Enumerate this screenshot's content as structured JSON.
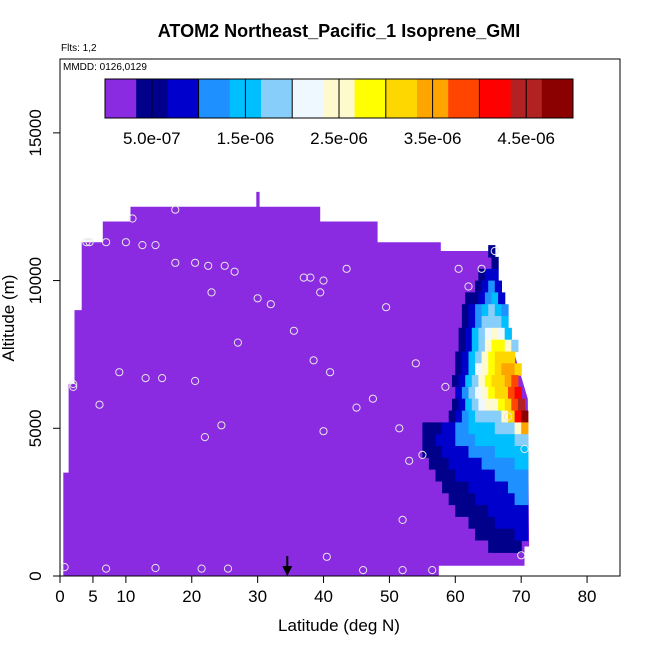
{
  "chart_data": {
    "type": "heatmap",
    "title": "ATOM2 Northeast_Pacific_1 Isoprene_GMI",
    "flights_note": "Flts: 1,2",
    "date_note": "MMDD: 0126,0129",
    "xlabel": "Latitude (deg N)",
    "ylabel": "Altitude (m)",
    "xlim": [
      0,
      85
    ],
    "ylim": [
      0,
      17500
    ],
    "x_ticks": [
      0,
      5,
      10,
      20,
      30,
      40,
      50,
      60,
      70,
      80
    ],
    "y_ticks": [
      0,
      5000,
      10000,
      15000
    ],
    "grid": false,
    "colorbar": {
      "position": "top",
      "range": [
        0,
        5e-06
      ],
      "tick_values": [
        5e-07,
        1.5e-06,
        2.5e-06,
        3.5e-06,
        4.5e-06
      ],
      "tick_labels": [
        "5.0e-07",
        "1.5e-06",
        "2.5e-06",
        "3.5e-06",
        "4.5e-06"
      ],
      "colors": [
        "#8a2be2",
        "#00008b",
        "#0000cd",
        "#1e90ff",
        "#00bfff",
        "#87cefa",
        "#f0f8ff",
        "#fffacd",
        "#ffff00",
        "#ffd700",
        "#ffa500",
        "#ff4500",
        "#ff0000",
        "#b22222",
        "#8b0000"
      ]
    },
    "background_value": 1e-07,
    "field_outline": [
      [
        0.5,
        0
      ],
      [
        0.5,
        3500
      ],
      [
        1.3,
        3500
      ],
      [
        1.3,
        6500
      ],
      [
        2.2,
        6500
      ],
      [
        2.2,
        9000
      ],
      [
        3.3,
        9000
      ],
      [
        3.3,
        11300
      ],
      [
        6.5,
        11300
      ],
      [
        6.5,
        12000
      ],
      [
        10.7,
        12000
      ],
      [
        10.7,
        12500
      ],
      [
        29.8,
        12500
      ],
      [
        29.8,
        13000
      ],
      [
        30.3,
        13000
      ],
      [
        30.3,
        12500
      ],
      [
        39.5,
        12500
      ],
      [
        39.5,
        12000
      ],
      [
        48.2,
        12000
      ],
      [
        48.2,
        11300
      ],
      [
        57.8,
        11300
      ],
      [
        57.8,
        11000
      ],
      [
        65.5,
        11000
      ],
      [
        65.5,
        10000
      ],
      [
        69,
        7500
      ],
      [
        71,
        6000
      ],
      [
        71.2,
        1000
      ],
      [
        70.5,
        1000
      ],
      [
        70.5,
        350
      ],
      [
        57.5,
        350
      ],
      [
        57.5,
        0
      ]
    ],
    "plume_value_rows": [
      {
        "alt": 11000,
        "x": [
          65.5
        ],
        "v": [
          5e-07
        ]
      },
      {
        "alt": 10600,
        "x": [
          66.0
        ],
        "v": [
          5e-07
        ]
      },
      {
        "alt": 10200,
        "x": [
          63.0,
          64.0,
          65.0,
          66.0
        ],
        "v": [
          2e-07,
          4e-07,
          7e-07,
          9e-07
        ]
      },
      {
        "alt": 9800,
        "x": [
          62.5,
          63.5,
          64.5,
          65.5,
          66.5
        ],
        "v": [
          3e-07,
          5e-07,
          8e-07,
          1.1e-06,
          9e-07
        ]
      },
      {
        "alt": 9400,
        "x": [
          62.0,
          63.0,
          64.0,
          65.0,
          66.0,
          67.0
        ],
        "v": [
          4e-07,
          6e-07,
          9e-07,
          1.3e-06,
          1.5e-06,
          1e-06
        ]
      },
      {
        "alt": 9000,
        "x": [
          61.5,
          62.5,
          63.5,
          64.5,
          65.5,
          66.5,
          67.5
        ],
        "v": [
          5e-07,
          8e-07,
          1.1e-06,
          1.5e-06,
          1.8e-06,
          1.6e-06,
          1.2e-06
        ]
      },
      {
        "alt": 8600,
        "x": [
          61.5,
          62.5,
          63.5,
          64.5,
          65.5,
          66.5,
          67.5
        ],
        "v": [
          5e-07,
          9e-07,
          1.3e-06,
          1.7e-06,
          2e-06,
          1.9e-06,
          1.5e-06
        ]
      },
      {
        "alt": 8200,
        "x": [
          61.0,
          62.0,
          63.0,
          64.0,
          65.0,
          66.0,
          67.0,
          68.0
        ],
        "v": [
          4e-07,
          9e-07,
          1.4e-06,
          1.9e-06,
          2.3e-06,
          2.5e-06,
          2.2e-06,
          1.6e-06
        ]
      },
      {
        "alt": 7800,
        "x": [
          61.0,
          62.0,
          63.0,
          64.0,
          65.0,
          66.0,
          67.0,
          68.0,
          69.0
        ],
        "v": [
          4e-07,
          9e-07,
          1.5e-06,
          2e-06,
          2.4e-06,
          2.7e-06,
          2.9e-06,
          2.6e-06,
          1.8e-06
        ]
      },
      {
        "alt": 7400,
        "x": [
          60.5,
          61.5,
          62.5,
          63.5,
          64.5,
          65.5,
          66.5,
          67.5,
          68.5
        ],
        "v": [
          4e-07,
          8e-07,
          1.4e-06,
          2e-06,
          2.5e-06,
          2.8e-06,
          3.1e-06,
          3.3e-06,
          3e-06
        ]
      },
      {
        "alt": 7000,
        "x": [
          60.5,
          61.5,
          62.5,
          63.5,
          64.5,
          65.5,
          66.5,
          67.5,
          68.5,
          69.5
        ],
        "v": [
          4e-07,
          9e-07,
          1.5e-06,
          2.1e-06,
          2.6e-06,
          2.9e-06,
          3.2e-06,
          3.4e-06,
          3.6e-06,
          3.2e-06
        ]
      },
      {
        "alt": 6600,
        "x": [
          60.0,
          61.0,
          62.0,
          63.0,
          64.0,
          65.0,
          66.0,
          67.0,
          68.0,
          69.0
        ],
        "v": [
          4e-07,
          8e-07,
          1.4e-06,
          2e-06,
          2.5e-06,
          2.8e-06,
          3e-06,
          3.3e-06,
          3.5e-06,
          3.7e-06
        ]
      },
      {
        "alt": 6200,
        "x": [
          59.5,
          60.5,
          61.5,
          62.5,
          63.5,
          64.5,
          65.5,
          66.5,
          67.5,
          68.5,
          69.5
        ],
        "v": [
          3e-07,
          7e-07,
          1.2e-06,
          1.8e-06,
          2.3e-06,
          2.6e-06,
          2.8e-06,
          3e-06,
          3.3e-06,
          3.8e-06,
          4.1e-06
        ]
      },
      {
        "alt": 5800,
        "x": [
          59.0,
          60.0,
          61.0,
          62.0,
          63.0,
          64.0,
          65.0,
          66.0,
          67.0,
          68.0,
          69.0,
          70.0
        ],
        "v": [
          3e-07,
          6e-07,
          1e-06,
          1.5e-06,
          2e-06,
          2.3e-06,
          2.5e-06,
          2.6e-06,
          2.8e-06,
          3.2e-06,
          3.9e-06,
          4.6e-06
        ]
      },
      {
        "alt": 5400,
        "x": [
          58.5,
          59.5,
          60.5,
          61.5,
          62.5,
          63.5,
          64.5,
          65.5,
          66.5,
          67.5,
          68.5,
          69.5,
          70.5
        ],
        "v": [
          3e-07,
          6e-07,
          9e-07,
          1.2e-06,
          1.5e-06,
          1.7e-06,
          1.8e-06,
          1.9e-06,
          2e-06,
          2.4e-06,
          3.2e-06,
          4.2e-06,
          4.8e-06
        ]
      },
      {
        "alt": 5000,
        "x": [
          53.5,
          54.5,
          55.5,
          56.5,
          57.5,
          58.5,
          59.5,
          60.5,
          61.5,
          62.5,
          63.5,
          64.5,
          65.5,
          66.5,
          67.5,
          68.5,
          69.5,
          70.5
        ],
        "v": [
          2e-07,
          3e-07,
          4e-07,
          5e-07,
          6e-07,
          8e-07,
          1e-06,
          1.2e-06,
          1.3e-06,
          1.4e-06,
          1.5e-06,
          1.5e-06,
          1.6e-06,
          1.7e-06,
          1.8e-06,
          2e-06,
          2.6e-06,
          3.6e-06
        ]
      },
      {
        "alt": 4600,
        "x": [
          53.5,
          54.5,
          55.5,
          56.5,
          57.5,
          58.5,
          59.5,
          60.5,
          61.5,
          62.5,
          63.5,
          64.5,
          65.5,
          66.5,
          67.5,
          68.5,
          69.5,
          70.5
        ],
        "v": [
          2e-07,
          3e-07,
          4e-07,
          6e-07,
          7e-07,
          9e-07,
          1e-06,
          1.1e-06,
          1.2e-06,
          1.3e-06,
          1.4e-06,
          1.4e-06,
          1.5e-06,
          1.5e-06,
          1.6e-06,
          1.6e-06,
          1.7e-06,
          2e-06
        ]
      },
      {
        "alt": 4200,
        "x": [
          54.5,
          55.5,
          56.5,
          57.5,
          58.5,
          59.5,
          60.5,
          61.5,
          62.5,
          63.5,
          64.5,
          65.5,
          66.5,
          67.5,
          68.5,
          69.5,
          70.5
        ],
        "v": [
          3e-07,
          4e-07,
          5e-07,
          6e-07,
          7e-07,
          8e-07,
          9e-07,
          1e-06,
          1.1e-06,
          1.2e-06,
          1.3e-06,
          1.3e-06,
          1.4e-06,
          1.4e-06,
          1.5e-06,
          1.5e-06,
          1.6e-06
        ]
      },
      {
        "alt": 3800,
        "x": [
          55.5,
          56.5,
          57.5,
          58.5,
          59.5,
          60.5,
          61.5,
          62.5,
          63.5,
          64.5,
          65.5,
          66.5,
          67.5,
          68.5,
          69.5,
          70.5
        ],
        "v": [
          3e-07,
          4e-07,
          5e-07,
          6e-07,
          7e-07,
          8e-07,
          9e-07,
          1e-06,
          1e-06,
          1.1e-06,
          1.2e-06,
          1.2e-06,
          1.3e-06,
          1.3e-06,
          1.4e-06,
          1.4e-06
        ]
      },
      {
        "alt": 3400,
        "x": [
          56.5,
          57.5,
          58.5,
          59.5,
          60.5,
          61.5,
          62.5,
          63.5,
          64.5,
          65.5,
          66.5,
          67.5,
          68.5,
          69.5,
          70.5
        ],
        "v": [
          3e-07,
          4e-07,
          5e-07,
          6e-07,
          7e-07,
          8e-07,
          8e-07,
          9e-07,
          1e-06,
          1e-06,
          1.1e-06,
          1.1e-06,
          1.2e-06,
          1.3e-06,
          1.3e-06
        ]
      },
      {
        "alt": 3000,
        "x": [
          57.5,
          58.5,
          59.5,
          60.5,
          61.5,
          62.5,
          63.5,
          64.5,
          65.5,
          66.5,
          67.5,
          68.5,
          69.5,
          70.5
        ],
        "v": [
          3e-07,
          4e-07,
          5e-07,
          6e-07,
          6e-07,
          7e-07,
          8e-07,
          8e-07,
          9e-07,
          1e-06,
          1e-06,
          1.1e-06,
          1.2e-06,
          1.2e-06
        ]
      },
      {
        "alt": 2600,
        "x": [
          58.5,
          59.5,
          60.5,
          61.5,
          62.5,
          63.5,
          64.5,
          65.5,
          66.5,
          67.5,
          68.5,
          69.5,
          70.5
        ],
        "v": [
          3e-07,
          4e-07,
          5e-07,
          5e-07,
          6e-07,
          7e-07,
          7e-07,
          8e-07,
          9e-07,
          9e-07,
          1e-06,
          1.1e-06,
          1.1e-06
        ]
      },
      {
        "alt": 2200,
        "x": [
          59.5,
          60.5,
          61.5,
          62.5,
          63.5,
          64.5,
          65.5,
          66.5,
          67.5,
          68.5,
          69.5,
          70.5
        ],
        "v": [
          3e-07,
          4e-07,
          4e-07,
          5e-07,
          6e-07,
          6e-07,
          7e-07,
          8e-07,
          8e-07,
          9e-07,
          1e-06,
          1e-06
        ]
      },
      {
        "alt": 1800,
        "x": [
          60.5,
          61.5,
          62.5,
          63.5,
          64.5,
          65.5,
          66.5,
          67.5,
          68.5,
          69.5,
          70.5
        ],
        "v": [
          3e-07,
          3e-07,
          4e-07,
          5e-07,
          5e-07,
          6e-07,
          7e-07,
          7e-07,
          8e-07,
          8e-07,
          9e-07
        ]
      },
      {
        "alt": 1400,
        "x": [
          61.5,
          62.5,
          63.5,
          64.5,
          65.5,
          66.5,
          67.5,
          68.5,
          69.5,
          70.5
        ],
        "v": [
          3e-07,
          3e-07,
          4e-07,
          4e-07,
          5e-07,
          5e-07,
          6e-07,
          6e-07,
          7e-07,
          7e-07
        ]
      },
      {
        "alt": 1000,
        "x": [
          62.5,
          63.5,
          64.5,
          65.5,
          66.5,
          67.5,
          68.5,
          69.5
        ],
        "v": [
          2e-07,
          3e-07,
          3e-07,
          4e-07,
          4e-07,
          5e-07,
          5e-07,
          6e-07
        ]
      }
    ],
    "flight_track_points": [
      [
        0.7,
        300
      ],
      [
        7,
        250
      ],
      [
        14.5,
        270
      ],
      [
        21.5,
        250
      ],
      [
        25.5,
        250
      ],
      [
        40.5,
        650
      ],
      [
        46,
        200
      ],
      [
        52,
        200
      ],
      [
        56.5,
        200
      ],
      [
        70,
        700
      ],
      [
        2,
        6500
      ],
      [
        2,
        6400
      ],
      [
        6,
        5800
      ],
      [
        9,
        6900
      ],
      [
        13,
        6700
      ],
      [
        15.5,
        6700
      ],
      [
        20.5,
        6600
      ],
      [
        22,
        4700
      ],
      [
        24.5,
        5100
      ],
      [
        27,
        7900
      ],
      [
        4,
        11300
      ],
      [
        4.5,
        11300
      ],
      [
        7,
        11300
      ],
      [
        10,
        11300
      ],
      [
        12.5,
        11200
      ],
      [
        14.5,
        11200
      ],
      [
        11,
        12100
      ],
      [
        17.5,
        12400
      ],
      [
        17.5,
        10600
      ],
      [
        20.5,
        10600
      ],
      [
        22.5,
        10500
      ],
      [
        25,
        10500
      ],
      [
        26.5,
        10300
      ],
      [
        23,
        9600
      ],
      [
        30,
        9400
      ],
      [
        32,
        9200
      ],
      [
        35.5,
        8300
      ],
      [
        37,
        10100
      ],
      [
        38,
        10100
      ],
      [
        39.5,
        9600
      ],
      [
        40,
        10000
      ],
      [
        43.5,
        10400
      ],
      [
        49.5,
        9100
      ],
      [
        54,
        7200
      ],
      [
        38.5,
        7300
      ],
      [
        41,
        6900
      ],
      [
        45,
        5700
      ],
      [
        47.5,
        6000
      ],
      [
        40,
        4900
      ],
      [
        51.5,
        5000
      ],
      [
        53,
        3900
      ],
      [
        55,
        4100
      ],
      [
        58.5,
        6400
      ],
      [
        52,
        1900
      ],
      [
        60.5,
        10400
      ],
      [
        62,
        9800
      ],
      [
        64,
        10400
      ],
      [
        66,
        11000
      ],
      [
        68,
        5400
      ],
      [
        70.5,
        4300
      ]
    ],
    "arrow_marker_x": 34.5
  }
}
